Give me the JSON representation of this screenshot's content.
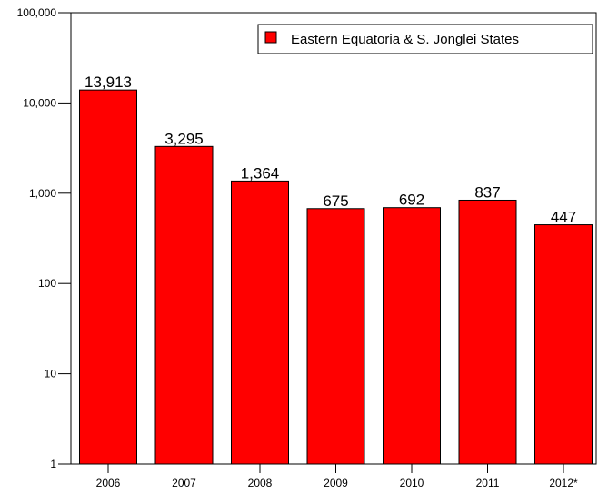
{
  "chart_data": {
    "type": "bar",
    "title": "",
    "xlabel": "",
    "ylabel": "",
    "y_scale": "log",
    "ylim": [
      1,
      100000
    ],
    "y_ticks": [
      1,
      10,
      100,
      1000,
      10000,
      100000
    ],
    "y_tick_labels": [
      "1",
      "10",
      "100",
      "1,000",
      "10,000",
      "100,000"
    ],
    "grid": false,
    "legend_position": "top-right",
    "categories": [
      "2006",
      "2007",
      "2008",
      "2009",
      "2010",
      "2011",
      "2012*"
    ],
    "series": [
      {
        "name": "Eastern Equatoria & S. Jonglei States",
        "color": "#ff0000",
        "values": [
          13913,
          3295,
          1364,
          675,
          692,
          837,
          447
        ],
        "value_labels": [
          "13,913",
          "3,295",
          "1,364",
          "675",
          "692",
          "837",
          "447"
        ]
      }
    ]
  }
}
